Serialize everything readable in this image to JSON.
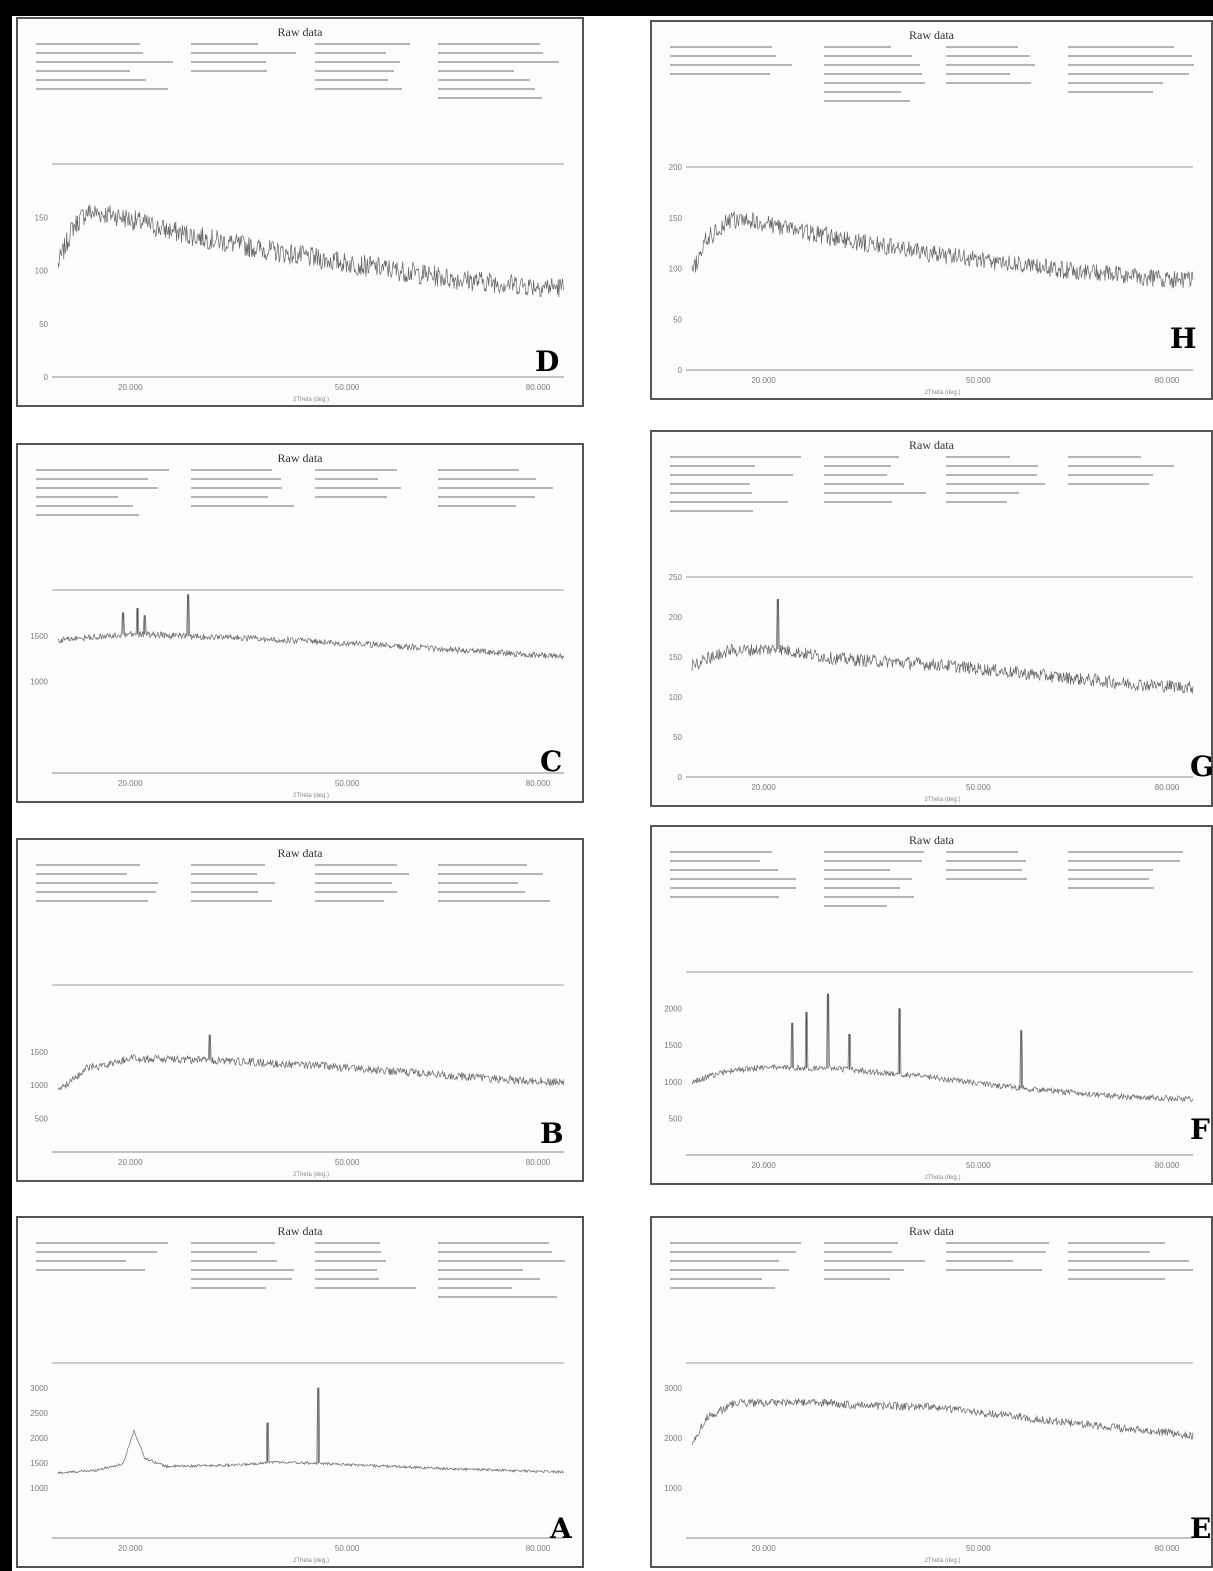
{
  "figure": {
    "layout": "two columns of raw XRD scans; labels D, C, B, A on the left, H, G, F, E on the right"
  },
  "chart_data": [
    {
      "panel": "D",
      "type": "line",
      "title": "Raw data",
      "x_unit": "2Theta (deg.)",
      "xlim": [
        10,
        80
      ],
      "ylim": [
        0,
        200
      ],
      "yticks": [
        0,
        50,
        100,
        150
      ],
      "xticks": [
        "20.000",
        "50.000",
        "80.000"
      ],
      "profile": [
        [
          10,
          105
        ],
        [
          12,
          140
        ],
        [
          14,
          155
        ],
        [
          18,
          152
        ],
        [
          25,
          138
        ],
        [
          35,
          124
        ],
        [
          45,
          112
        ],
        [
          55,
          102
        ],
        [
          65,
          92
        ],
        [
          75,
          86
        ],
        [
          80,
          84
        ]
      ],
      "noise": 10,
      "peaks": []
    },
    {
      "panel": "C",
      "type": "line",
      "title": "Raw data",
      "x_unit": "2Theta (deg.)",
      "xlim": [
        10,
        80
      ],
      "ylim": [
        0,
        2000
      ],
      "yticks": [
        1000,
        1500
      ],
      "xticks": [
        "20.000",
        "50.000",
        "80.000"
      ],
      "profile": [
        [
          10,
          1450
        ],
        [
          14,
          1480
        ],
        [
          20,
          1520
        ],
        [
          30,
          1490
        ],
        [
          45,
          1440
        ],
        [
          60,
          1370
        ],
        [
          70,
          1320
        ],
        [
          80,
          1270
        ]
      ],
      "noise": 35,
      "peaks": [
        [
          19,
          1750
        ],
        [
          21,
          1800
        ],
        [
          22,
          1720
        ],
        [
          28,
          1950
        ]
      ]
    },
    {
      "panel": "B",
      "type": "line",
      "title": "Raw data",
      "x_unit": "2Theta (deg.)",
      "xlim": [
        10,
        80
      ],
      "ylim": [
        0,
        2500
      ],
      "yticks": [
        500,
        1000,
        1500
      ],
      "xticks": [
        "20.000",
        "50.000",
        "80.000"
      ],
      "profile": [
        [
          10,
          900
        ],
        [
          14,
          1250
        ],
        [
          20,
          1400
        ],
        [
          30,
          1380
        ],
        [
          45,
          1300
        ],
        [
          60,
          1180
        ],
        [
          70,
          1100
        ],
        [
          80,
          1040
        ]
      ],
      "noise": 60,
      "peaks": [
        [
          31,
          1750
        ]
      ]
    },
    {
      "panel": "A",
      "type": "line",
      "title": "Raw data",
      "x_unit": "2Theta (deg.)",
      "xlim": [
        10,
        80
      ],
      "ylim": [
        0,
        3500
      ],
      "yticks": [
        1000,
        1500,
        2000,
        2500,
        3000
      ],
      "xticks": [
        "20.000",
        "50.000",
        "80.000"
      ],
      "profile": [
        [
          10,
          1300
        ],
        [
          15,
          1350
        ],
        [
          19,
          1480
        ],
        [
          20.5,
          2150
        ],
        [
          22,
          1600
        ],
        [
          25,
          1430
        ],
        [
          35,
          1460
        ],
        [
          40,
          1520
        ],
        [
          50,
          1470
        ],
        [
          65,
          1380
        ],
        [
          80,
          1320
        ]
      ],
      "noise": 25,
      "peaks": [
        [
          39,
          2300
        ],
        [
          46,
          3000
        ]
      ]
    },
    {
      "panel": "H",
      "type": "line",
      "title": "Raw data",
      "x_unit": "2Theta (deg.)",
      "xlim": [
        10,
        80
      ],
      "ylim": [
        0,
        200
      ],
      "yticks": [
        0,
        50,
        100,
        150,
        200
      ],
      "xticks": [
        "20.000",
        "50.000",
        "80.000"
      ],
      "profile": [
        [
          10,
          95
        ],
        [
          12,
          128
        ],
        [
          15,
          148
        ],
        [
          20,
          145
        ],
        [
          30,
          130
        ],
        [
          45,
          113
        ],
        [
          60,
          100
        ],
        [
          72,
          92
        ],
        [
          80,
          88
        ]
      ],
      "noise": 9,
      "peaks": []
    },
    {
      "panel": "G",
      "type": "line",
      "title": "Raw data",
      "x_unit": "2Theta (deg.)",
      "xlim": [
        10,
        80
      ],
      "ylim": [
        0,
        250
      ],
      "yticks": [
        0,
        50,
        100,
        150,
        200,
        250
      ],
      "xticks": [
        "20.000",
        "50.000",
        "80.000"
      ],
      "profile": [
        [
          10,
          140
        ],
        [
          15,
          158
        ],
        [
          22,
          160
        ],
        [
          30,
          148
        ],
        [
          45,
          140
        ],
        [
          60,
          126
        ],
        [
          72,
          116
        ],
        [
          80,
          112
        ]
      ],
      "noise": 8,
      "peaks": [
        [
          22,
          222
        ]
      ]
    },
    {
      "panel": "F",
      "type": "line",
      "title": "Raw data",
      "x_unit": "2Theta (deg.)",
      "xlim": [
        10,
        80
      ],
      "ylim": [
        0,
        2500
      ],
      "yticks": [
        500,
        1000,
        1500,
        2000
      ],
      "xticks": [
        "20.000",
        "50.000",
        "80.000"
      ],
      "profile": [
        [
          10,
          1000
        ],
        [
          15,
          1150
        ],
        [
          20,
          1200
        ],
        [
          30,
          1180
        ],
        [
          40,
          1100
        ],
        [
          55,
          920
        ],
        [
          70,
          800
        ],
        [
          80,
          760
        ]
      ],
      "noise": 40,
      "peaks": [
        [
          24,
          1800
        ],
        [
          26,
          1950
        ],
        [
          29,
          2200
        ],
        [
          32,
          1650
        ],
        [
          39,
          2000
        ],
        [
          56,
          1700
        ]
      ]
    },
    {
      "panel": "E",
      "type": "line",
      "title": "Raw data",
      "x_unit": "2Theta (deg.)",
      "xlim": [
        10,
        80
      ],
      "ylim": [
        0,
        3500
      ],
      "yticks": [
        1000,
        2000,
        3000
      ],
      "xticks": [
        "20.000",
        "50.000",
        "80.000"
      ],
      "profile": [
        [
          10,
          1900
        ],
        [
          12,
          2400
        ],
        [
          16,
          2700
        ],
        [
          25,
          2720
        ],
        [
          35,
          2650
        ],
        [
          45,
          2600
        ],
        [
          60,
          2350
        ],
        [
          70,
          2200
        ],
        [
          80,
          2050
        ]
      ],
      "noise": 80,
      "peaks": []
    }
  ]
}
